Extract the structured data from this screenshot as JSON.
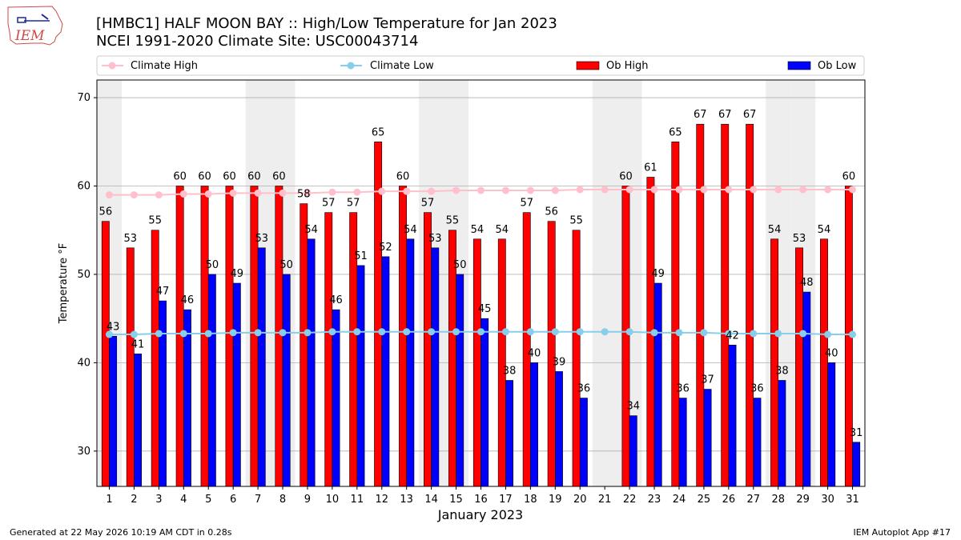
{
  "title_line1": "[HMBC1] HALF MOON BAY :: High/Low Temperature for Jan 2023",
  "title_line2": "NCEI 1991-2020 Climate Site: USC00043714",
  "logo_text": "IEM",
  "footer_left": "Generated at 22 May 2026 10:19 AM CDT in 0.28s",
  "footer_right": "IEM Autoplot App #17",
  "colors": {
    "ob_high": "#ff0000",
    "ob_low": "#0000ff",
    "climate_high": "#ffc0cb",
    "climate_low": "#87ceeb",
    "weekend_shade": "#eeeeee",
    "grid": "#b0b0b0"
  },
  "chart_data": {
    "type": "bar",
    "xlabel": "January 2023",
    "ylabel": "Temperature °F",
    "ylim": [
      26,
      72
    ],
    "yticks": [
      30,
      40,
      50,
      60,
      70
    ],
    "grid": true,
    "legend_placement": "top",
    "categories": [
      "1",
      "2",
      "3",
      "4",
      "5",
      "6",
      "7",
      "8",
      "9",
      "10",
      "11",
      "12",
      "13",
      "14",
      "15",
      "16",
      "17",
      "18",
      "19",
      "20",
      "21",
      "22",
      "23",
      "24",
      "25",
      "26",
      "27",
      "28",
      "29",
      "30",
      "31"
    ],
    "shaded_days": [
      1,
      7,
      8,
      14,
      15,
      21,
      22,
      28,
      29
    ],
    "series": [
      {
        "name": "Climate High",
        "kind": "line",
        "values": [
          59,
          59,
          59,
          59.1,
          59.1,
          59.2,
          59.2,
          59.2,
          59.2,
          59.3,
          59.3,
          59.4,
          59.4,
          59.4,
          59.5,
          59.5,
          59.5,
          59.5,
          59.5,
          59.6,
          59.6,
          59.6,
          59.6,
          59.6,
          59.6,
          59.6,
          59.6,
          59.6,
          59.6,
          59.6,
          59.6
        ]
      },
      {
        "name": "Climate Low",
        "kind": "line",
        "values": [
          43.2,
          43.2,
          43.3,
          43.3,
          43.3,
          43.4,
          43.4,
          43.4,
          43.4,
          43.5,
          43.5,
          43.5,
          43.5,
          43.5,
          43.5,
          43.5,
          43.5,
          43.5,
          43.5,
          43.5,
          43.5,
          43.5,
          43.4,
          43.4,
          43.4,
          43.3,
          43.3,
          43.3,
          43.3,
          43.2,
          43.2
        ]
      },
      {
        "name": "Ob High",
        "kind": "bar",
        "values": [
          56,
          53,
          55,
          60,
          60,
          60,
          60,
          60,
          58,
          57,
          57,
          65,
          60,
          57,
          55,
          54,
          54,
          57,
          56,
          55,
          null,
          60,
          61,
          65,
          67,
          67,
          67,
          54,
          53,
          54,
          60
        ]
      },
      {
        "name": "Ob Low",
        "kind": "bar",
        "values": [
          43,
          41,
          47,
          46,
          50,
          49,
          53,
          50,
          54,
          46,
          51,
          52,
          54,
          53,
          50,
          45,
          38,
          40,
          39,
          36,
          null,
          34,
          49,
          36,
          37,
          42,
          36,
          38,
          48,
          40,
          31
        ]
      }
    ]
  }
}
